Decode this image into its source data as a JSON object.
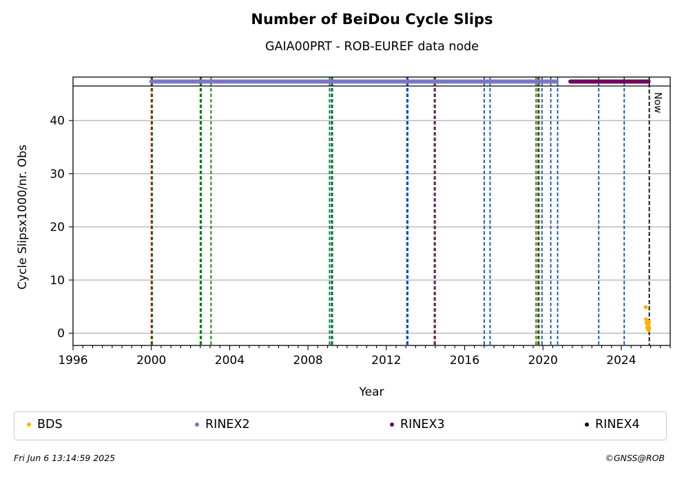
{
  "chart_data": {
    "type": "scatter",
    "title": "Number of BeiDou Cycle Slips",
    "subtitle": "GAIA00PRT - ROB-EUREF data node",
    "xlabel": "Year",
    "ylabel": "Cycle Slipsx1000/nr. Obs",
    "xlim": [
      1996,
      2026.5
    ],
    "ylim": [
      -2.3,
      46.5
    ],
    "x_ticks": [
      "1996",
      "2000",
      "2004",
      "2008",
      "2012",
      "2016",
      "2020",
      "2024"
    ],
    "y_ticks": [
      "0",
      "10",
      "20",
      "30",
      "40"
    ],
    "grid": "horizontal",
    "legend_position": "bottom",
    "now_label": "Now",
    "now_year": 2025.43,
    "series": [
      {
        "name": "BDS",
        "color": "#ffb300",
        "points": [
          [
            2025.25,
            4.9
          ],
          [
            2025.27,
            2.6
          ],
          [
            2025.3,
            1.9
          ],
          [
            2025.32,
            2.3
          ],
          [
            2025.33,
            1.1
          ],
          [
            2025.35,
            0.8
          ],
          [
            2025.37,
            1.6
          ],
          [
            2025.38,
            1.3
          ],
          [
            2025.4,
            0.6
          ],
          [
            2025.41,
            2.1
          ],
          [
            2025.42,
            1.0
          ]
        ]
      },
      {
        "name": "RINEX2",
        "color": "#7b78bf",
        "coverage": [
          2000.0,
          2020.7
        ]
      },
      {
        "name": "RINEX3",
        "color": "#6a0a5a",
        "coverage": [
          2021.4,
          2025.4
        ]
      },
      {
        "name": "RINEX4",
        "color": "#1a0020",
        "coverage": []
      }
    ],
    "event_lines": [
      {
        "x": 2000.0,
        "color": "#cc0000"
      },
      {
        "x": 2000.05,
        "color": "#008000"
      },
      {
        "x": 2002.5,
        "color": "#008000"
      },
      {
        "x": 2002.55,
        "color": "#008000"
      },
      {
        "x": 2003.05,
        "color": "#008000"
      },
      {
        "x": 2009.1,
        "color": "#008000"
      },
      {
        "x": 2009.2,
        "color": "#0055bb"
      },
      {
        "x": 2009.25,
        "color": "#008000"
      },
      {
        "x": 2013.05,
        "color": "#0055bb"
      },
      {
        "x": 2013.1,
        "color": "#0055bb"
      },
      {
        "x": 2014.45,
        "color": "#0055bb"
      },
      {
        "x": 2014.5,
        "color": "#cc0000"
      },
      {
        "x": 2017.0,
        "color": "#0055bb"
      },
      {
        "x": 2017.3,
        "color": "#0055bb"
      },
      {
        "x": 2019.65,
        "color": "#008000"
      },
      {
        "x": 2019.75,
        "color": "#cc0000"
      },
      {
        "x": 2019.8,
        "color": "#008000"
      },
      {
        "x": 2019.95,
        "color": "#0055bb"
      },
      {
        "x": 2020.4,
        "color": "#0055bb"
      },
      {
        "x": 2020.75,
        "color": "#0055bb"
      },
      {
        "x": 2022.85,
        "color": "#0055bb"
      },
      {
        "x": 2024.15,
        "color": "#0055bb"
      }
    ]
  },
  "legend": {
    "items": [
      {
        "label": "BDS",
        "color": "#ffb300"
      },
      {
        "label": "RINEX2",
        "color": "#7b78bf"
      },
      {
        "label": "RINEX3",
        "color": "#6a0a5a"
      },
      {
        "label": "RINEX4",
        "color": "#1a0020"
      }
    ]
  },
  "footer": {
    "timestamp": "Fri Jun  6 13:14:59 2025",
    "credit": "©GNSS@ROB"
  }
}
